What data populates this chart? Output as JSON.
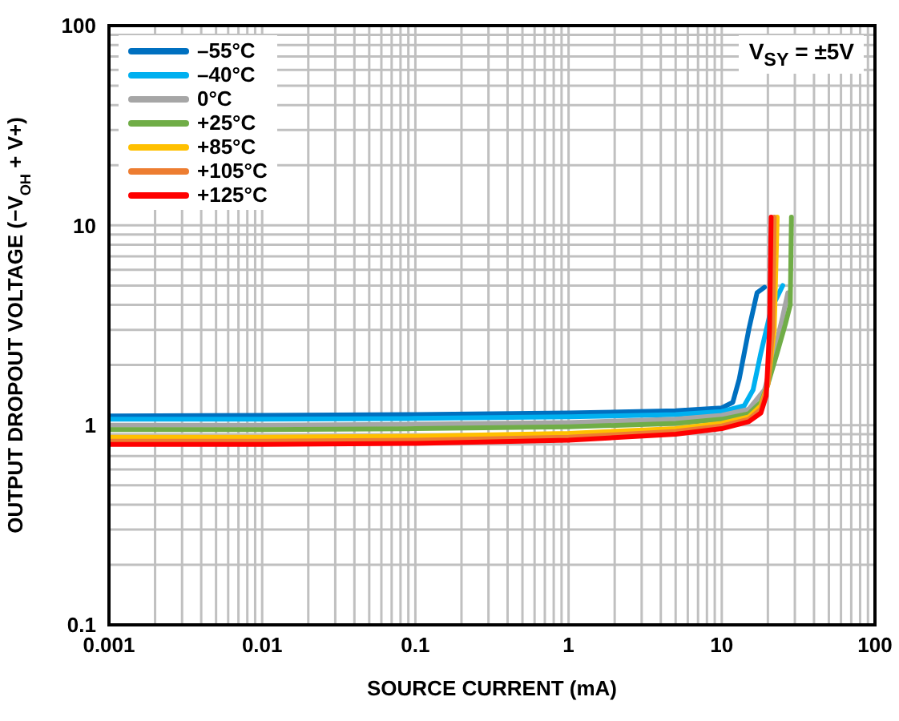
{
  "chart_data": {
    "type": "line",
    "xlabel": "SOURCE CURRENT (mA)",
    "ylabel": "OUTPUT DROPOUT VOLTAGE (−V$_{OH}$ + V+)",
    "annotations": [
      "V$_{SY}$ = ±5V"
    ],
    "log": "xy",
    "grid": true,
    "legend": "top left",
    "marker": "none",
    "line_style": "solid",
    "xlim": [
      0.001,
      100
    ],
    "ylim": [
      0.1,
      100
    ],
    "xticks": [
      0.001,
      {
        "value": 0.002,
        "label": null
      },
      {
        "value": 0.003,
        "label": null
      },
      {
        "value": 0.004,
        "label": null
      },
      {
        "value": 0.005,
        "label": null
      },
      {
        "value": 0.006,
        "label": null
      },
      {
        "value": 0.007,
        "label": null
      },
      {
        "value": 0.008,
        "label": null
      },
      {
        "value": 0.009,
        "label": null
      },
      0.01,
      {
        "value": 0.02,
        "label": null
      },
      {
        "value": 0.03,
        "label": null
      },
      {
        "value": 0.04,
        "label": null
      },
      {
        "value": 0.05,
        "label": null
      },
      {
        "value": 0.06,
        "label": null
      },
      {
        "value": 0.07,
        "label": null
      },
      {
        "value": 0.08,
        "label": null
      },
      {
        "value": 0.09,
        "label": null
      },
      0.1,
      {
        "value": 0.2,
        "label": null
      },
      {
        "value": 0.3,
        "label": null
      },
      {
        "value": 0.4,
        "label": null
      },
      {
        "value": 0.5,
        "label": null
      },
      {
        "value": 0.6,
        "label": null
      },
      {
        "value": 0.7,
        "label": null
      },
      {
        "value": 0.8,
        "label": null
      },
      {
        "value": 0.9,
        "label": null
      },
      1,
      {
        "value": 2,
        "label": null
      },
      {
        "value": 3,
        "label": null
      },
      {
        "value": 4,
        "label": null
      },
      {
        "value": 5,
        "label": null
      },
      {
        "value": 6,
        "label": null
      },
      {
        "value": 7,
        "label": null
      },
      {
        "value": 8,
        "label": null
      },
      {
        "value": 9,
        "label": null
      },
      10,
      {
        "value": 20,
        "label": null
      },
      {
        "value": 30,
        "label": null
      },
      {
        "value": 40,
        "label": null
      },
      {
        "value": 50,
        "label": null
      },
      {
        "value": 60,
        "label": null
      },
      {
        "value": 70,
        "label": null
      },
      {
        "value": 80,
        "label": null
      },
      {
        "value": 90,
        "label": null
      },
      100
    ],
    "yticks": [
      0.1,
      {
        "value": 0.2,
        "label": null
      },
      {
        "value": 0.3,
        "label": null
      },
      {
        "value": 0.4,
        "label": null
      },
      {
        "value": 0.5,
        "label": null
      },
      {
        "value": 0.6,
        "label": null
      },
      {
        "value": 0.7,
        "label": null
      },
      {
        "value": 0.8,
        "label": null
      },
      {
        "value": 0.9,
        "label": null
      },
      1,
      {
        "value": 2,
        "label": null
      },
      {
        "value": 3,
        "label": null
      },
      {
        "value": 4,
        "label": null
      },
      {
        "value": 5,
        "label": null
      },
      {
        "value": 6,
        "label": null
      },
      {
        "value": 7,
        "label": null
      },
      {
        "value": 8,
        "label": null
      },
      {
        "value": 9,
        "label": null
      },
      10,
      {
        "value": 20,
        "label": null
      },
      {
        "value": 30,
        "label": null
      },
      {
        "value": 40,
        "label": null
      },
      {
        "value": 50,
        "label": null
      },
      {
        "value": 60,
        "label": null
      },
      {
        "value": 70,
        "label": null
      },
      {
        "value": 80,
        "label": null
      },
      {
        "value": 90,
        "label": null
      },
      100
    ],
    "series": [
      {
        "name": "–55°C",
        "color": "#0070c0",
        "x": [
          0.001,
          0.01,
          0.1,
          1,
          5,
          10,
          11.8,
          13,
          15,
          17,
          19
        ],
        "values": [
          1.11,
          1.12,
          1.13,
          1.15,
          1.18,
          1.22,
          1.3,
          1.7,
          3,
          4.6,
          4.9
        ]
      },
      {
        "name": "–40°C",
        "color": "#00b0f0",
        "x": [
          0.001,
          0.01,
          0.1,
          1,
          5,
          10,
          14,
          16,
          18,
          21,
          25
        ],
        "values": [
          1.07,
          1.07,
          1.08,
          1.1,
          1.13,
          1.17,
          1.25,
          1.5,
          2.3,
          3.8,
          5
        ]
      },
      {
        "name": "0°C",
        "color": "#a6a6a6",
        "x": [
          0.001,
          0.01,
          0.1,
          1,
          5,
          10,
          15,
          19,
          22,
          25,
          27
        ],
        "values": [
          1.0,
          1.0,
          1.01,
          1.03,
          1.07,
          1.12,
          1.2,
          1.5,
          2.3,
          3.5,
          4.6
        ]
      },
      {
        "name": "+25°C",
        "color": "#70ad47",
        "x": [
          0.001,
          0.01,
          0.1,
          1,
          5,
          10,
          15,
          18,
          20,
          23,
          26,
          28,
          28.5
        ],
        "values": [
          0.95,
          0.95,
          0.96,
          0.98,
          1.02,
          1.07,
          1.14,
          1.3,
          1.6,
          2.3,
          3.2,
          4,
          11
        ]
      },
      {
        "name": "+85°C",
        "color": "#ffc000",
        "x": [
          0.001,
          0.01,
          0.1,
          1,
          5,
          10,
          15,
          18,
          20,
          22,
          23
        ],
        "values": [
          0.87,
          0.87,
          0.88,
          0.91,
          0.96,
          1.02,
          1.1,
          1.25,
          1.6,
          3,
          11
        ]
      },
      {
        "name": "+105°C",
        "color": "#ed7d31",
        "x": [
          0.001,
          0.01,
          0.1,
          1,
          5,
          10,
          15,
          18,
          20,
          21.5,
          22
        ],
        "values": [
          0.83,
          0.83,
          0.84,
          0.87,
          0.93,
          0.99,
          1.07,
          1.2,
          1.6,
          3,
          11
        ]
      },
      {
        "name": "+125°C",
        "color": "#ff0000",
        "x": [
          0.001,
          0.01,
          0.1,
          1,
          5,
          10,
          15,
          18,
          19.5,
          20.5,
          21
        ],
        "values": [
          0.8,
          0.8,
          0.81,
          0.84,
          0.9,
          0.96,
          1.04,
          1.15,
          1.4,
          3,
          11
        ]
      }
    ]
  }
}
